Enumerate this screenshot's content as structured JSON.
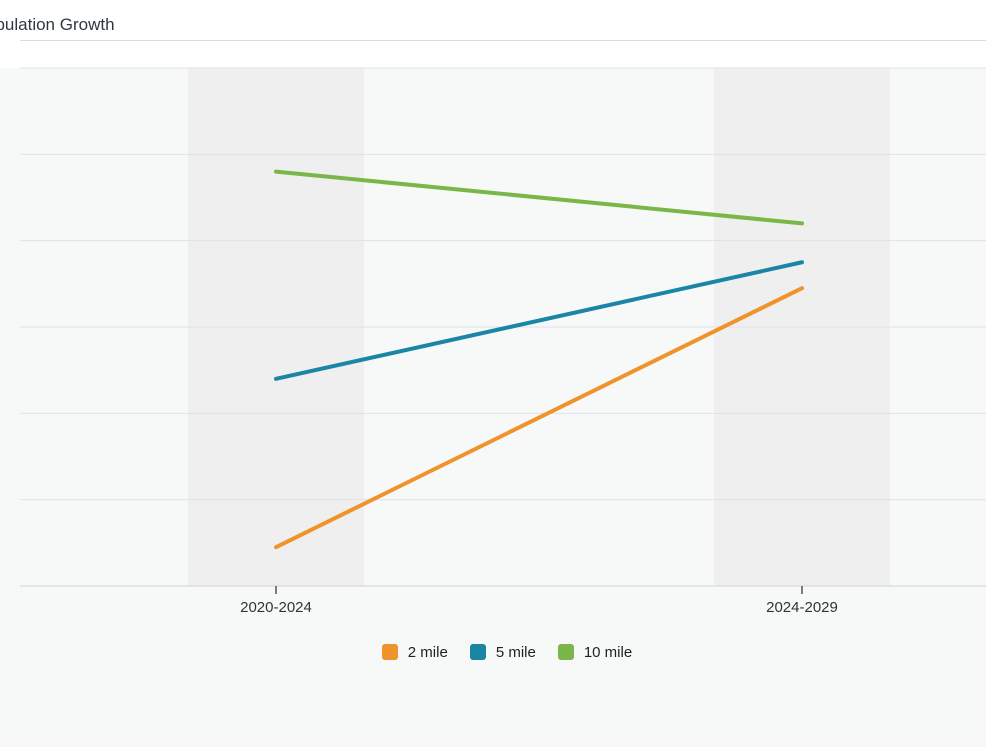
{
  "chart_data": {
    "type": "line",
    "title": "Population Growth",
    "title_visible": "opulation Growth",
    "categories": [
      "2020-2024",
      "2024-2029"
    ],
    "series": [
      {
        "name": "2 mile",
        "color": "#f0932b",
        "values": [
          0.45,
          3.45
        ]
      },
      {
        "name": "5 mile",
        "color": "#1b85a6",
        "values": [
          2.4,
          3.75
        ]
      },
      {
        "name": "10 mile",
        "color": "#7ab648",
        "values": [
          4.8,
          4.2
        ]
      }
    ],
    "ylim": [
      0,
      6
    ],
    "grid": true,
    "legend_position": "bottom"
  }
}
